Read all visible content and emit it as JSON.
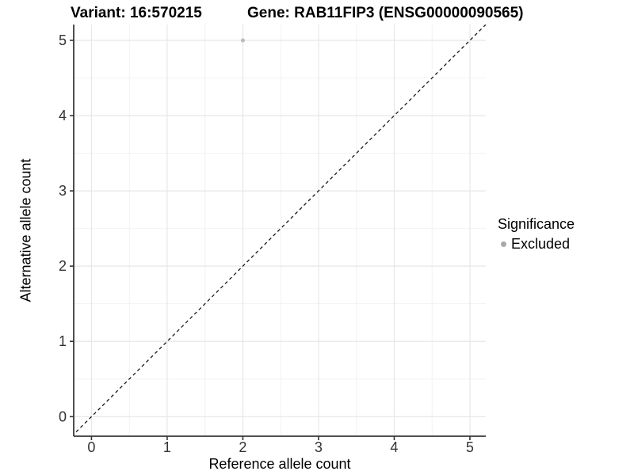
{
  "titles": {
    "variant": "Variant: 16:570215",
    "gene": "Gene: RAB11FIP3 (ENSG00000090565)"
  },
  "legend": {
    "title": "Significance",
    "items": [
      {
        "label": "Excluded",
        "color": "#a9a9a9"
      }
    ]
  },
  "chart_data": {
    "type": "scatter",
    "title": "Variant: 16:570215 — Gene: RAB11FIP3 (ENSG00000090565)",
    "xlabel": "Reference allele count",
    "ylabel": "Alternative allele count",
    "xlim": [
      -0.235,
      5.21
    ],
    "ylim": [
      -0.26,
      5.21
    ],
    "xticks": [
      0,
      1,
      2,
      3,
      4,
      5
    ],
    "yticks": [
      0,
      1,
      2,
      3,
      4,
      5
    ],
    "grid": {
      "major": true,
      "minor": true
    },
    "legend_position": "right",
    "series": [
      {
        "name": "Excluded",
        "color": "#bdbdbd",
        "points": [
          {
            "x": 2,
            "y": 5
          }
        ]
      }
    ],
    "abline": {
      "slope": 1,
      "intercept": 0,
      "style": "dashed",
      "color": "#1a1a1a"
    },
    "colors": {
      "grid_major": "#e7e7e7",
      "grid_minor": "#f2f2f2",
      "axis_line": "#3a3a3a",
      "tick_mark": "#333333",
      "tick_label": "#333333",
      "panel_background": "#ffffff"
    }
  }
}
